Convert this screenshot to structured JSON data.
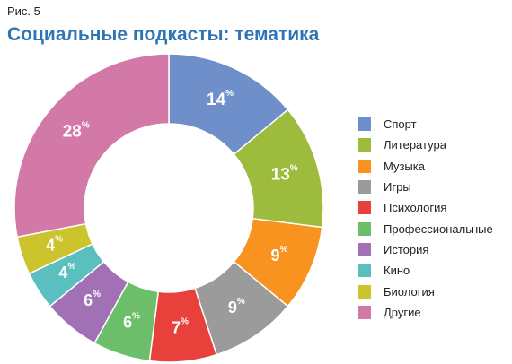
{
  "figure_label": "Рис. 5",
  "chart_data": {
    "type": "pie",
    "title": "Социальные подкасты: тематика",
    "unit": "%",
    "categories": [
      "Спорт",
      "Литература",
      "Музыка",
      "Игры",
      "Психология",
      "Профессиональные",
      "История",
      "Кино",
      "Биология",
      "Другие"
    ],
    "values": [
      14,
      13,
      9,
      9,
      7,
      6,
      6,
      4,
      4,
      28
    ],
    "colors": [
      "#6e8fc9",
      "#9dbb3c",
      "#f7931e",
      "#9b9b9b",
      "#e8413b",
      "#6dbe6b",
      "#a170b5",
      "#5bbfc0",
      "#cbc42c",
      "#d279a8"
    ],
    "start_angle": "12 o'clock",
    "direction": "clockwise",
    "legend": {
      "placement": "right"
    }
  }
}
